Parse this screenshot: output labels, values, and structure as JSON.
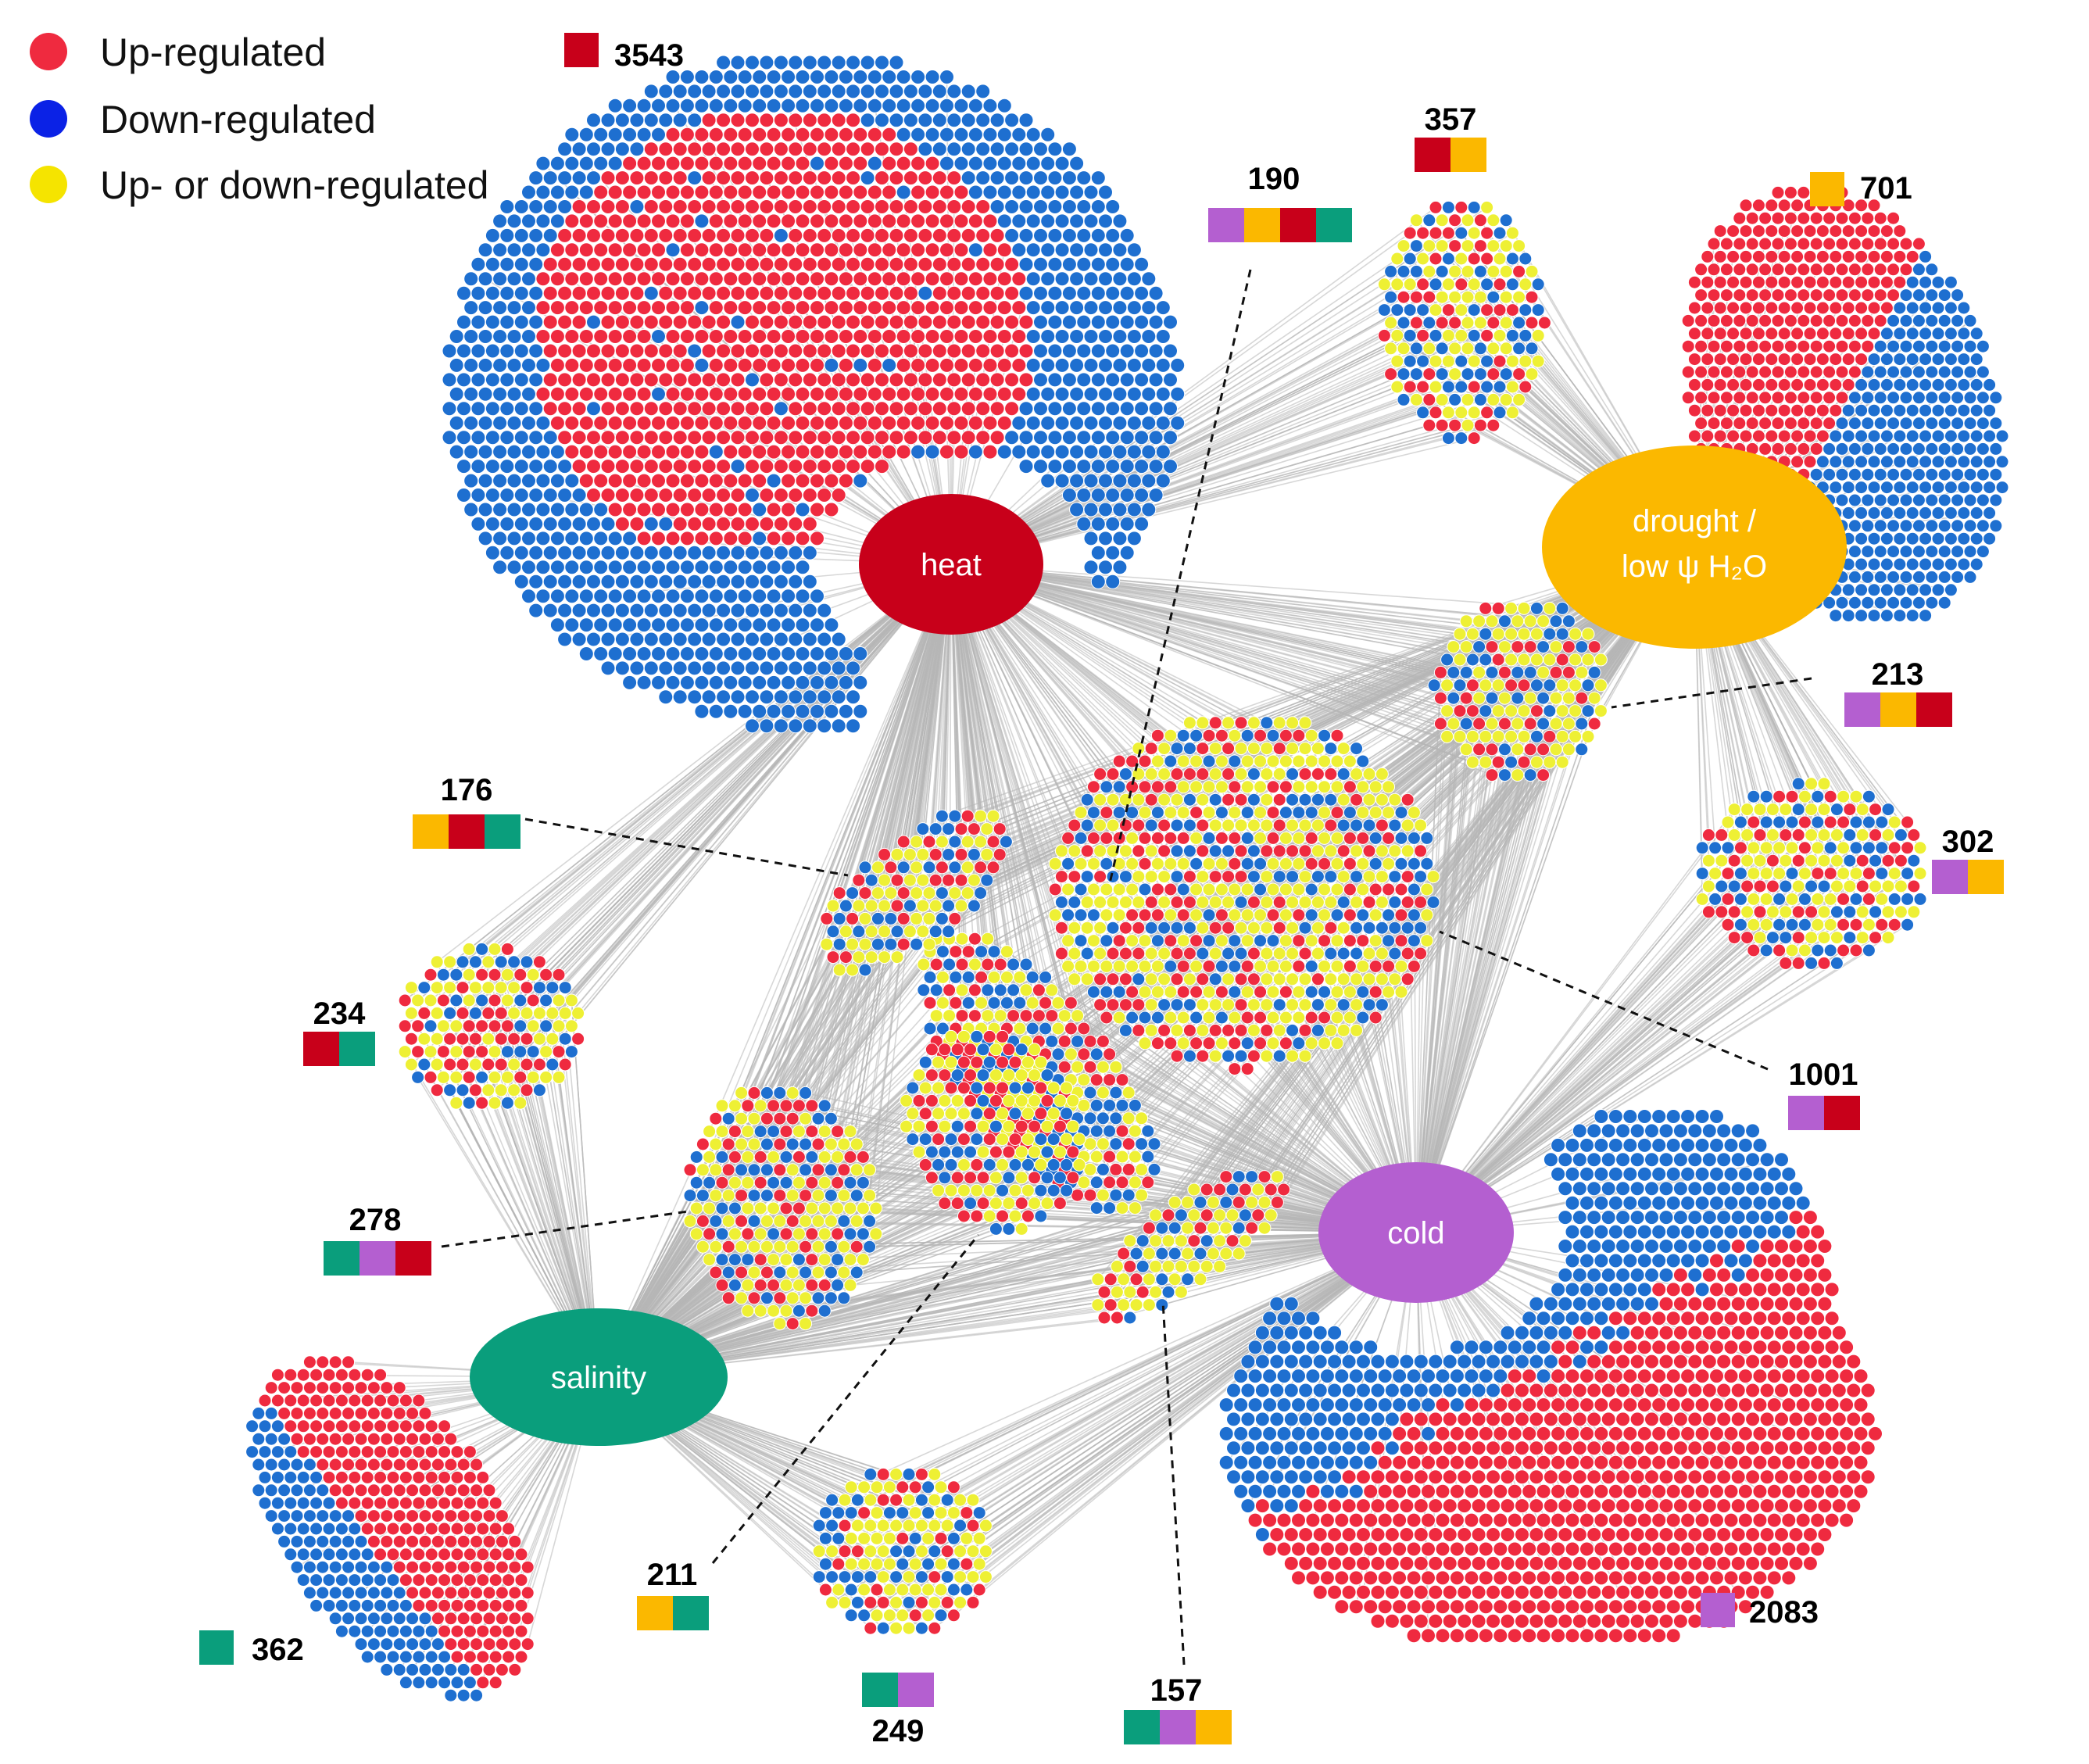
{
  "legend": [
    {
      "label": "Up-regulated",
      "color": "#ef2a3f"
    },
    {
      "label": "Down-regulated",
      "color": "#0b22e6"
    },
    {
      "label": "Up- or down-regulated",
      "color": "#f5e400"
    }
  ],
  "colors": {
    "edge": "#b7b7b7",
    "node_up": "#ef2a3f",
    "node_down": "#1e6fd0",
    "node_either": "#eef034",
    "heat": "#c8001a",
    "drought": "#fbb800",
    "cold": "#b45fd0",
    "salinity": "#0a9e7c"
  },
  "hubs": [
    {
      "id": "heat",
      "lines": [
        "heat"
      ]
    },
    {
      "id": "drought",
      "lines": [
        "drought /",
        "low ψ H₂O"
      ]
    },
    {
      "id": "cold",
      "lines": [
        "cold"
      ]
    },
    {
      "id": "salinity",
      "lines": [
        "salinity"
      ]
    }
  ],
  "clusters": [
    {
      "id": "c3543",
      "count": "3543",
      "stresses": [
        "heat"
      ],
      "composition": "up/down"
    },
    {
      "id": "c701",
      "count": "701",
      "stresses": [
        "drought"
      ],
      "composition": "up/down"
    },
    {
      "id": "c2083",
      "count": "2083",
      "stresses": [
        "cold"
      ],
      "composition": "up/down"
    },
    {
      "id": "c362",
      "count": "362",
      "stresses": [
        "salinity"
      ],
      "composition": "up/down"
    },
    {
      "id": "c357",
      "count": "357",
      "stresses": [
        "heat",
        "drought"
      ],
      "composition": "mixed"
    },
    {
      "id": "c190",
      "count": "190",
      "stresses": [
        "cold",
        "drought",
        "heat",
        "salinity"
      ],
      "composition": "mixed"
    },
    {
      "id": "c213",
      "count": "213",
      "stresses": [
        "cold",
        "drought",
        "heat"
      ],
      "composition": "mixed"
    },
    {
      "id": "c302",
      "count": "302",
      "stresses": [
        "cold",
        "drought"
      ],
      "composition": "mixed"
    },
    {
      "id": "c1001",
      "count": "1001",
      "stresses": [
        "cold",
        "heat"
      ],
      "composition": "mixed"
    },
    {
      "id": "c176",
      "count": "176",
      "stresses": [
        "drought",
        "heat",
        "salinity"
      ],
      "composition": "mixed"
    },
    {
      "id": "c234",
      "count": "234",
      "stresses": [
        "heat",
        "salinity"
      ],
      "composition": "mixed"
    },
    {
      "id": "c278",
      "count": "278",
      "stresses": [
        "salinity",
        "cold",
        "heat"
      ],
      "composition": "mixed"
    },
    {
      "id": "c211",
      "count": "211",
      "stresses": [
        "drought",
        "salinity"
      ],
      "composition": "mixed"
    },
    {
      "id": "c249",
      "count": "249",
      "stresses": [
        "salinity",
        "cold"
      ],
      "composition": "mixed"
    },
    {
      "id": "c157",
      "count": "157",
      "stresses": [
        "salinity",
        "cold",
        "drought"
      ],
      "composition": "mixed"
    }
  ]
}
